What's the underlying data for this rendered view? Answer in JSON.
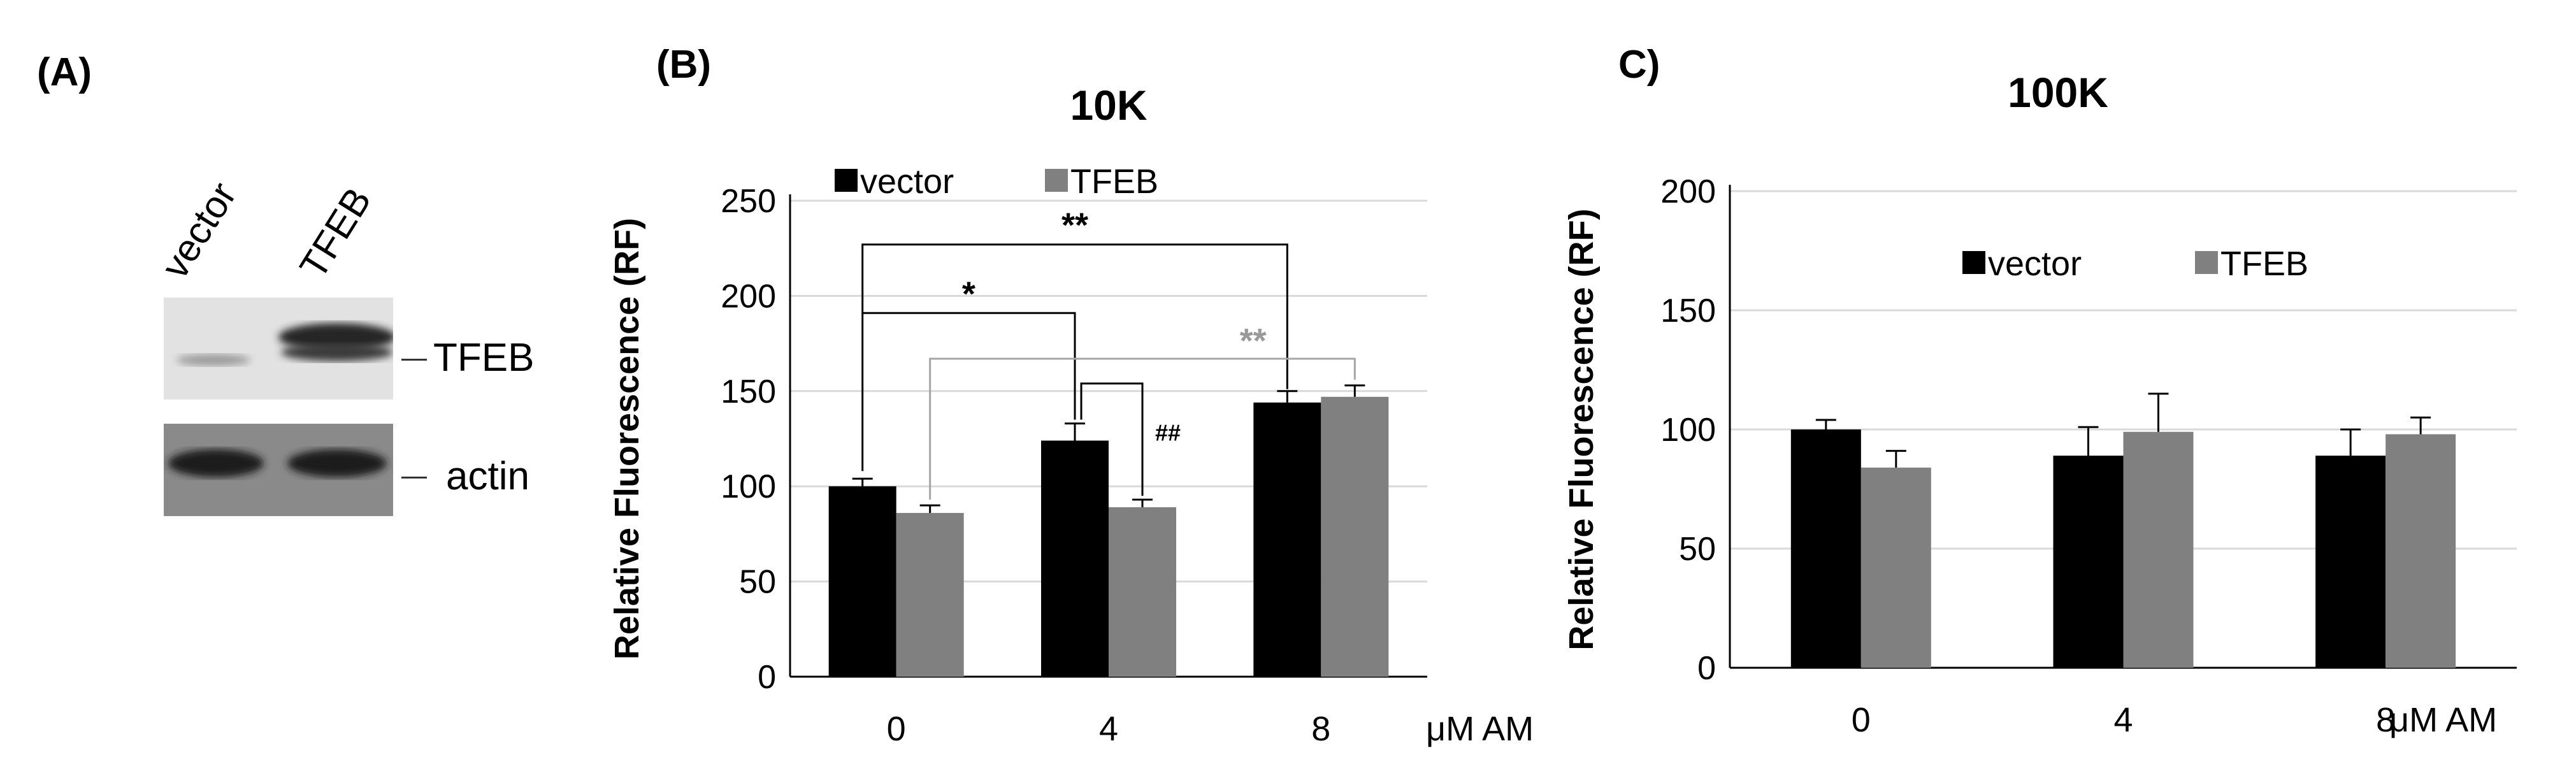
{
  "panel_a": {
    "label": "(A)",
    "lanes": [
      "vector",
      "TFEB"
    ],
    "bands": [
      "TFEB",
      "actin"
    ]
  },
  "chart_data": [
    {
      "panel_label": "(B)",
      "type": "bar",
      "title": "10K",
      "xlabel": "",
      "unit_label": "μM AM",
      "ylabel": "Relative  Fluorescence  (RF)",
      "categories": [
        "0",
        "4",
        "8"
      ],
      "ylim": [
        0,
        250
      ],
      "yticks": [
        0,
        50,
        100,
        150,
        200,
        250
      ],
      "grid": true,
      "legend_position": "top-left",
      "series": [
        {
          "name": "vector",
          "color": "#000000",
          "values": [
            100,
            124,
            144
          ],
          "errors": [
            4,
            9,
            6
          ]
        },
        {
          "name": "TFEB",
          "color": "#808080",
          "values": [
            86,
            89,
            147
          ],
          "errors": [
            4,
            4,
            6
          ]
        }
      ],
      "annotations": [
        {
          "text": "**",
          "color": "#000000"
        },
        {
          "text": "*",
          "color": "#000000"
        },
        {
          "text": "**",
          "color": "#999999"
        },
        {
          "text": "##",
          "color": "#000000"
        }
      ]
    },
    {
      "panel_label": "C)",
      "type": "bar",
      "title": "100K",
      "xlabel": "",
      "unit_label": "μM AM",
      "ylabel": "Relative  Fluorescence  (RF)",
      "categories": [
        "0",
        "4",
        "8"
      ],
      "ylim": [
        0,
        200
      ],
      "yticks": [
        0,
        50,
        100,
        150,
        200
      ],
      "grid": true,
      "legend_position": "top-center",
      "series": [
        {
          "name": "vector",
          "color": "#000000",
          "values": [
            100,
            89,
            89
          ],
          "errors": [
            4,
            12,
            11
          ]
        },
        {
          "name": "TFEB",
          "color": "#808080",
          "values": [
            84,
            99,
            98
          ],
          "errors": [
            7,
            16,
            7
          ]
        }
      ],
      "annotations": []
    }
  ]
}
